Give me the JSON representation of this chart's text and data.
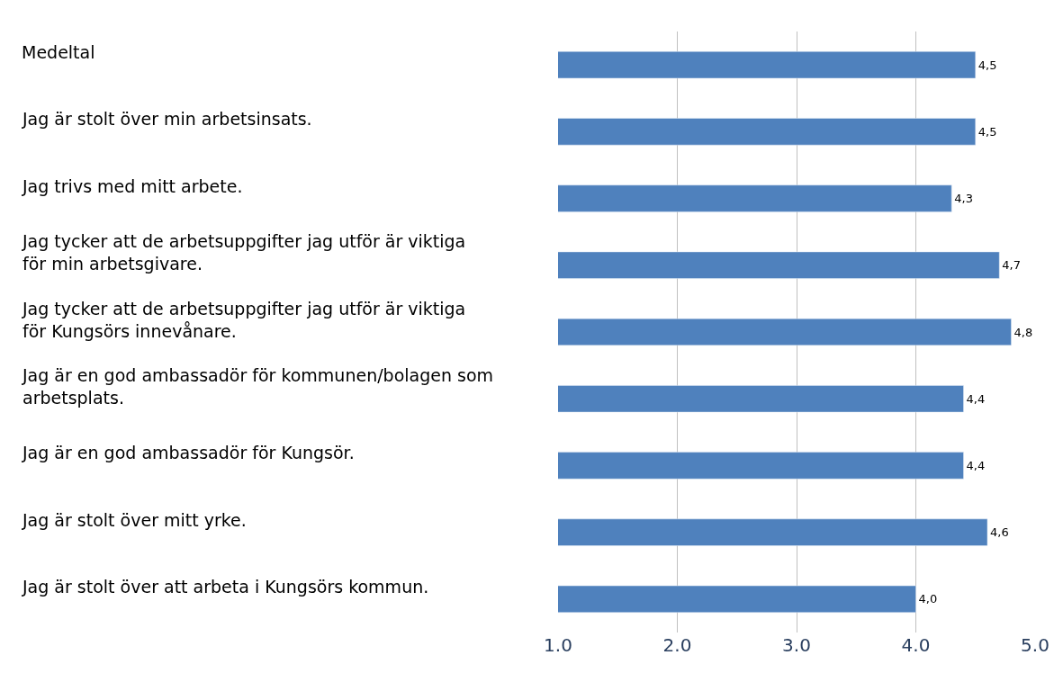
{
  "chart_data": {
    "type": "bar",
    "orientation": "horizontal",
    "categories": [
      "Medeltal",
      "Jag är stolt över min arbetsinsats.",
      "Jag trivs med mitt arbete.",
      "Jag tycker att de arbetsuppgifter jag utför är viktiga för min arbetsgivare.",
      "Jag tycker att de arbetsuppgifter jag utför är viktiga för Kungsörs innevånare.",
      "Jag är en god ambassadör för kommunen/bolagen som arbetsplats.",
      "Jag är en god ambassadör för Kungsör.",
      "Jag är stolt över mitt yrke.",
      "Jag är stolt över att arbeta i Kungsörs kommun."
    ],
    "values": [
      4.5,
      4.5,
      4.3,
      4.7,
      4.8,
      4.4,
      4.4,
      4.6,
      4.0
    ],
    "value_labels": [
      "4,5",
      "4,5",
      "4,3",
      "4,7",
      "4,8",
      "4,4",
      "4,4",
      "4,6",
      "4,0"
    ],
    "color": "#4f81bd",
    "xlim": [
      1,
      5
    ],
    "xticks": [
      {
        "value": 1,
        "label": "1.0"
      },
      {
        "value": 2,
        "label": "2.0"
      },
      {
        "value": 3,
        "label": "3.0"
      },
      {
        "value": 4,
        "label": "4.0"
      },
      {
        "value": 5,
        "label": "5.0"
      }
    ],
    "grid": "x",
    "legend": false
  }
}
